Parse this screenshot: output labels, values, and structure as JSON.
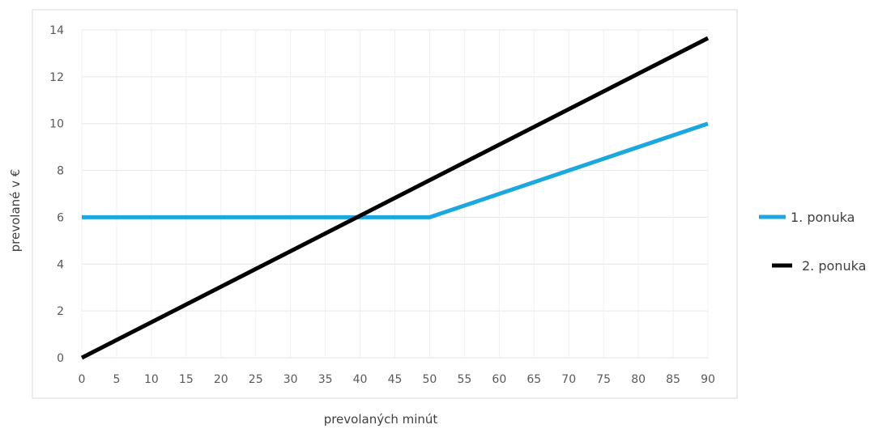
{
  "chart_data": {
    "type": "line",
    "xlabel": "prevolaných minút",
    "ylabel": "prevolané v €",
    "x_ticks": [
      0,
      5,
      10,
      15,
      20,
      25,
      30,
      35,
      40,
      45,
      50,
      55,
      60,
      65,
      70,
      75,
      80,
      85,
      90
    ],
    "y_ticks": [
      0,
      2,
      4,
      6,
      8,
      10,
      12,
      14
    ],
    "xlim": [
      0,
      90
    ],
    "ylim": [
      0,
      14
    ],
    "grid": true,
    "legend_position": "right",
    "series": [
      {
        "name": "1. ponuka",
        "color": "#1CA7E0",
        "x": [
          0,
          50,
          90
        ],
        "y": [
          6,
          6,
          10
        ]
      },
      {
        "name": "2. ponuka",
        "color": "#000000",
        "x": [
          0,
          90
        ],
        "y": [
          0,
          13.65
        ]
      }
    ]
  }
}
